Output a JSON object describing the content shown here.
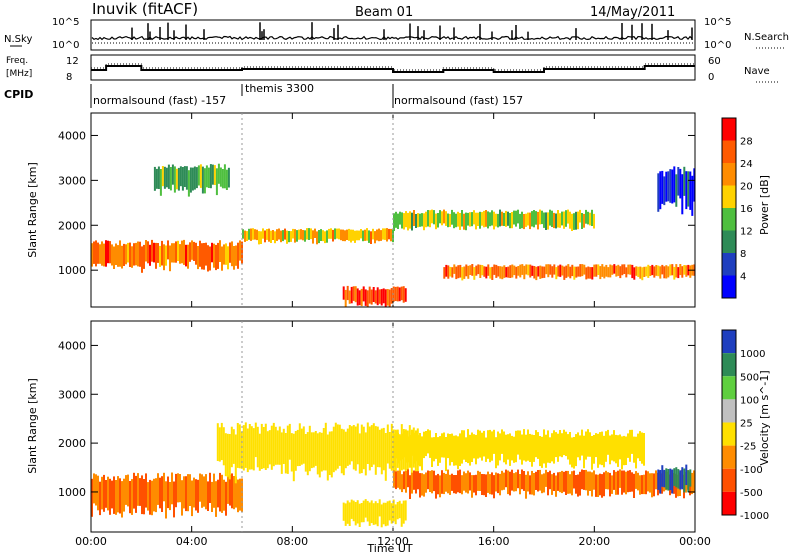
{
  "header": {
    "station": "Inuvik (fitACF)",
    "beam": "Beam 01",
    "date": "14/May/2011"
  },
  "nsky_panel": {
    "left_label": "N.Sky",
    "left_ticks": [
      "10^5",
      "10^0"
    ],
    "right_label": "N.Search",
    "right_ticks": [
      "10^5",
      "10^0"
    ]
  },
  "freq_panel": {
    "left_label_1": "Freq.",
    "left_label_2": "[MHz]",
    "left_ticks": [
      "12",
      "8"
    ],
    "right_label": "Nave",
    "right_ticks": [
      "60",
      "0"
    ]
  },
  "cpid_panel": {
    "label": "CPID",
    "segments": [
      {
        "text": "normalsound (fast) -157",
        "start_h": 0,
        "end_h": 6
      },
      {
        "text": "themis 3300",
        "start_h": 6,
        "end_h": 12
      },
      {
        "text": "normalsound (fast) 157",
        "start_h": 12,
        "end_h": 24
      }
    ]
  },
  "power_colorbar": {
    "label": "Power [dB]",
    "ticks": [
      "28",
      "24",
      "20",
      "16",
      "12",
      "8",
      "4"
    ],
    "colors": [
      "#ff0000",
      "#ff5a00",
      "#ff8c00",
      "#ffd200",
      "#4fbf3f",
      "#2e8b57",
      "#1f3fbf",
      "#0000ff"
    ]
  },
  "velocity_colorbar": {
    "label": "Velocity [m s^-1]",
    "ticks": [
      "1000",
      "500",
      "100",
      "25",
      "-25",
      "-100",
      "-500",
      "-1000"
    ],
    "colors": [
      "#1f3fbf",
      "#2e8b57",
      "#5fcf3f",
      "#c0c0c0",
      "#ffe000",
      "#ff8c00",
      "#ff5000",
      "#ff0000"
    ]
  },
  "chart_data": [
    {
      "type": "heatmap",
      "name": "power",
      "ylabel": "Slant Range [km]",
      "xlim": [
        0,
        24
      ],
      "ylim": [
        180,
        4500
      ],
      "yticks": [
        "1000",
        "2000",
        "3000",
        "4000"
      ],
      "bands": [
        {
          "start_h": 0.0,
          "end_h": 6.0,
          "range_lo": 1000,
          "range_hi": 1600,
          "power": 24
        },
        {
          "start_h": 6.0,
          "end_h": 12.0,
          "range_lo": 1600,
          "range_hi": 1900,
          "power": 20
        },
        {
          "start_h": 10.0,
          "end_h": 12.5,
          "range_lo": 180,
          "range_hi": 600,
          "power": 28
        },
        {
          "start_h": 12.0,
          "end_h": 20.0,
          "range_lo": 1900,
          "range_hi": 2300,
          "power": 16
        },
        {
          "start_h": 14.0,
          "end_h": 24.0,
          "range_lo": 800,
          "range_hi": 1100,
          "power": 24
        },
        {
          "start_h": 2.5,
          "end_h": 5.5,
          "range_lo": 2700,
          "range_hi": 3300,
          "power": 12
        },
        {
          "start_h": 22.5,
          "end_h": 24.0,
          "range_lo": 2300,
          "range_hi": 3200,
          "power": 4
        }
      ]
    },
    {
      "type": "heatmap",
      "name": "velocity",
      "ylabel": "Slant Range [km]",
      "xlabel": "Time UT",
      "xlim": [
        0,
        24
      ],
      "ylim": [
        180,
        4500
      ],
      "yticks": [
        "1000",
        "2000",
        "3000",
        "4000"
      ],
      "xticks": [
        "00:00",
        "04:00",
        "08:00",
        "12:00",
        "16:00",
        "20:00",
        "00:00"
      ],
      "bands": [
        {
          "start_h": 0.0,
          "end_h": 6.0,
          "range_lo": 500,
          "range_hi": 1300,
          "velocity": -100
        },
        {
          "start_h": 5.0,
          "end_h": 13.0,
          "range_lo": 1300,
          "range_hi": 2300,
          "velocity": 0
        },
        {
          "start_h": 10.0,
          "end_h": 12.5,
          "range_lo": 300,
          "range_hi": 800,
          "velocity": 0
        },
        {
          "start_h": 12.0,
          "end_h": 24.0,
          "range_lo": 900,
          "range_hi": 1400,
          "velocity": -100
        },
        {
          "start_h": 12.0,
          "end_h": 22.0,
          "range_lo": 1500,
          "range_hi": 2200,
          "velocity": 0
        },
        {
          "start_h": 22.5,
          "end_h": 23.8,
          "range_lo": 1000,
          "range_hi": 1500,
          "velocity": 1000
        }
      ]
    }
  ]
}
